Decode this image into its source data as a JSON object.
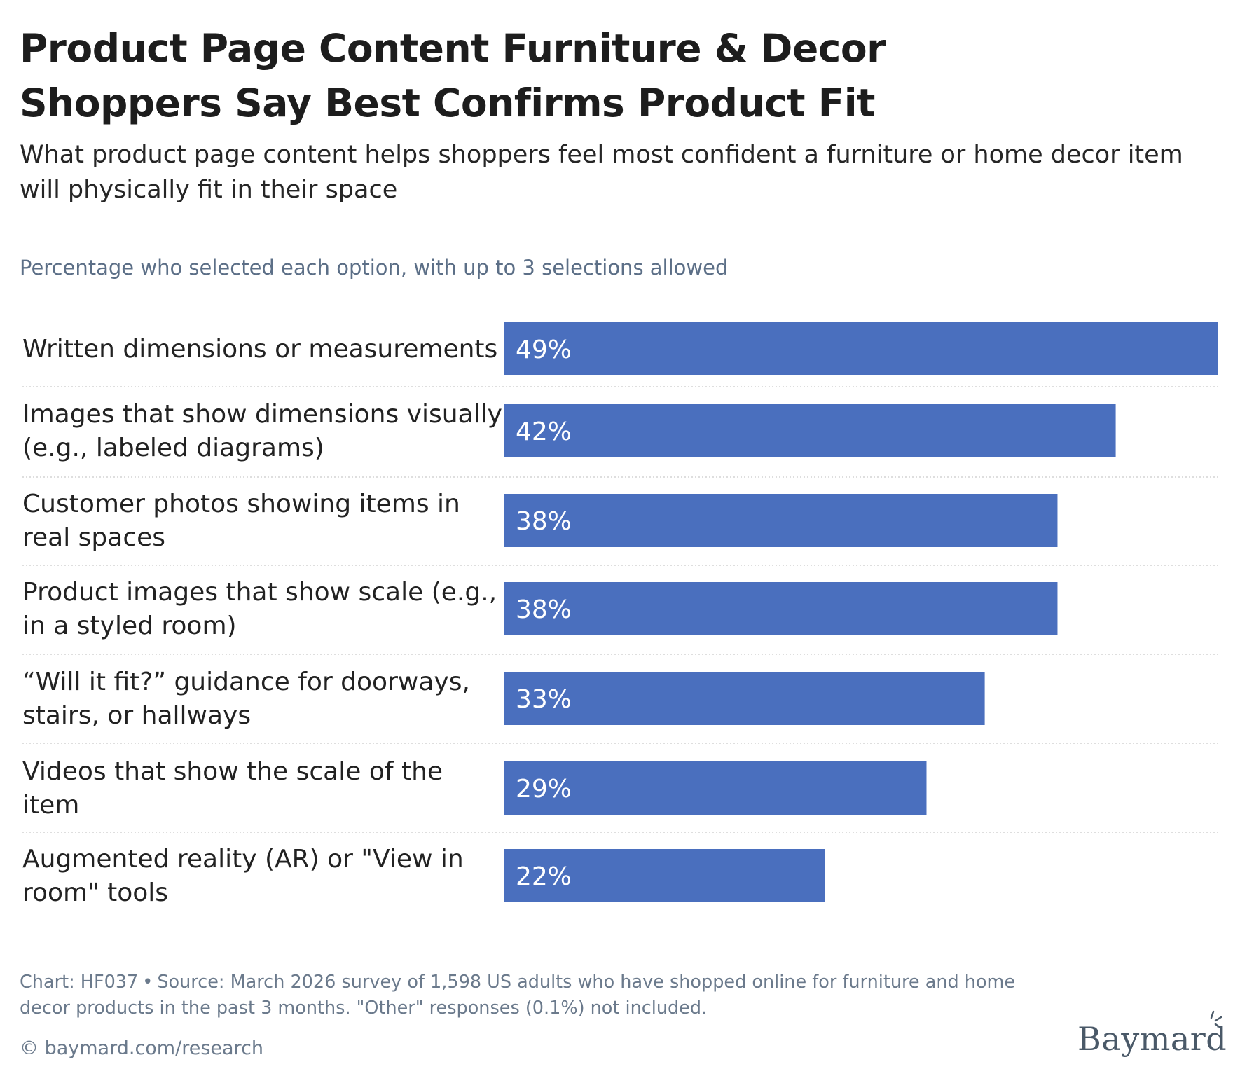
{
  "title": "Product Page Content Furniture & Decor Shoppers Say Best Confirms Product Fit",
  "subtitle": "What product page content helps shoppers feel most confident a furniture or home decor item will physically fit in their space",
  "caption": "Percentage who selected each option, with up to 3 selections allowed",
  "footer": {
    "chart_id": "Chart: HF037",
    "separator": "•",
    "source": "Source: March 2026 survey of 1,598 US adults who have shopped online for furniture and home decor products in the past 3 months. \"Other\" responses (0.1%) not included.",
    "copyright": "© baymard.com/research"
  },
  "logo": "Baymard",
  "colors": {
    "bar": "#4a6fbe",
    "divider": "#d4d4d4",
    "muted_text": "#5c6f87"
  },
  "chart_data": {
    "type": "bar",
    "orientation": "horizontal",
    "categories": [
      [
        "Written dimensions or measurements"
      ],
      [
        "Images that show dimensions visually",
        "(e.g., labeled diagrams)"
      ],
      [
        "Customer photos showing items in",
        "real spaces"
      ],
      [
        "Product images that show scale (e.g.,",
        "in a styled room)"
      ],
      [
        "“Will it fit?” guidance for doorways,",
        "stairs, or hallways"
      ],
      [
        "Videos that show the scale of the",
        "item"
      ],
      [
        "Augmented reality (AR) or \"View in",
        "room\" tools"
      ]
    ],
    "values": [
      49,
      42,
      38,
      38,
      33,
      29,
      22
    ],
    "data_labels": [
      "49%",
      "42%",
      "38%",
      "38%",
      "33%",
      "29%",
      "22%"
    ],
    "unit": "%",
    "xlim": [
      0,
      49
    ],
    "grid": false,
    "legend": "none"
  }
}
